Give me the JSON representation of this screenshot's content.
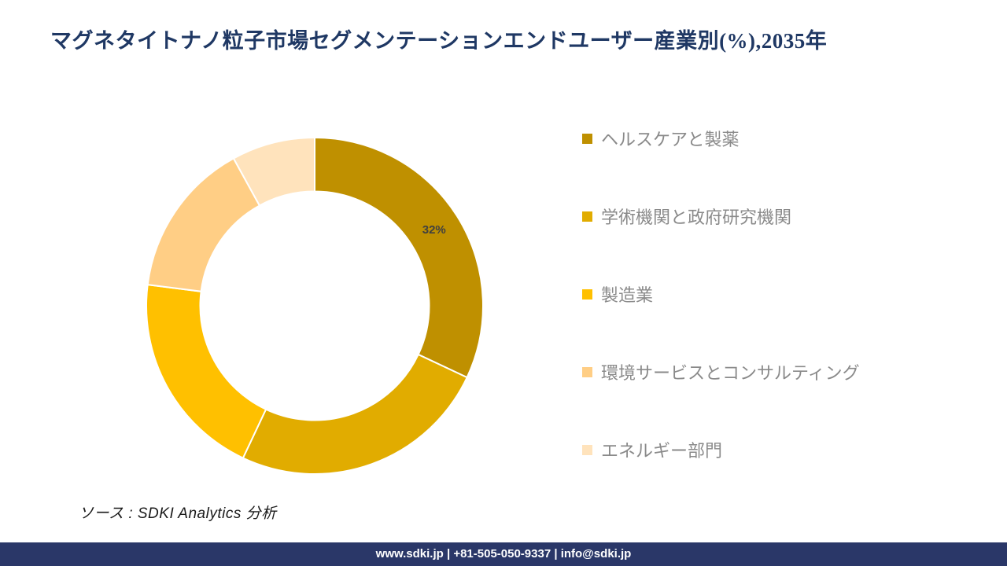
{
  "title": "マグネタイトナノ粒子市場セグメンテーションエンドユーザー産業別(%),2035年",
  "chart_data": {
    "type": "pie",
    "subtype": "donut",
    "title": "マグネタイトナノ粒子市場セグメンテーションエンドユーザー産業別(%),2035年",
    "categories": [
      "ヘルスケアと製薬",
      "学術機関と政府研究機関",
      "製造業",
      "環境サービスとコンサルティング",
      "エネルギー部門"
    ],
    "values": [
      32,
      25,
      20,
      15,
      8
    ],
    "unit": "%",
    "colors": [
      "#BF9000",
      "#E1AC00",
      "#FFC000",
      "#FFCE85",
      "#FFE3BC"
    ],
    "data_labels": [
      "32%",
      "",
      "",
      "",
      ""
    ],
    "legend_position": "right",
    "start_angle_deg": 0,
    "clockwise": true,
    "inner_radius_ratio": 0.68,
    "segment_gap_color": "#FFFFFF"
  },
  "source_note": "ソース : SDKI Analytics 分析",
  "footer": {
    "text": "www.sdki.jp | +81-505-050-9337 | info@sdki.jp",
    "background": "#2A3768"
  },
  "styles": {
    "title_color": "#1F3864",
    "legend_text_color": "#8A8A8A",
    "data_label_color": "#404040"
  }
}
